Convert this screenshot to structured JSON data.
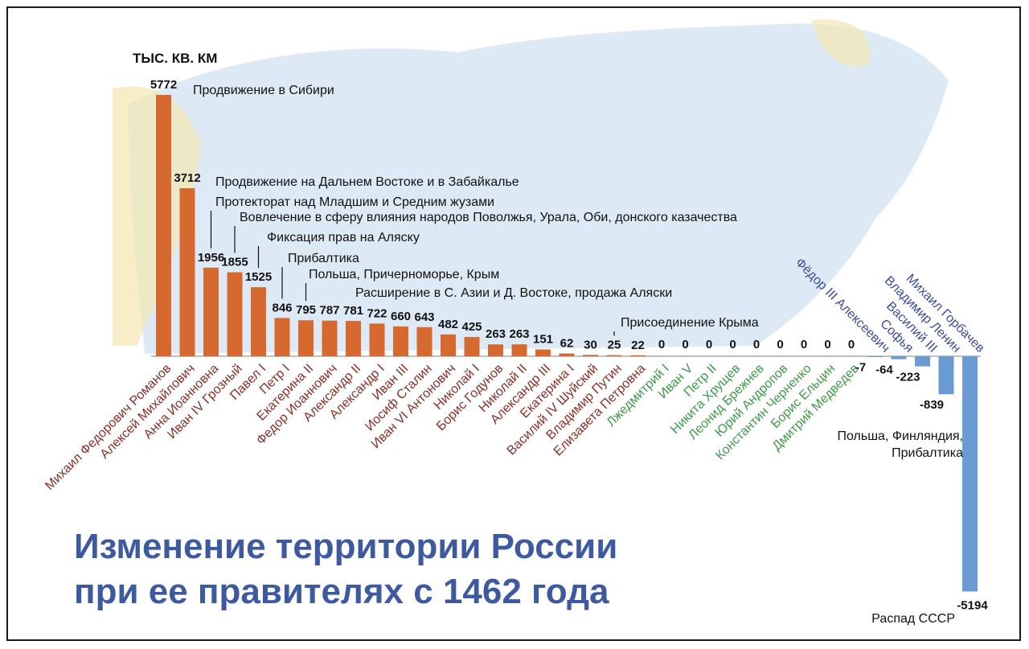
{
  "chart_data": {
    "type": "bar",
    "title_lines": [
      "Изменение территории России",
      "при ее правителях с 1462 года"
    ],
    "unit_label": "ТЫС. КВ. КМ",
    "categories": [
      "Михаил Федорович Романов",
      "Алексей Михайлович",
      "Анна Иоанновна",
      "Иван IV Грозный",
      "Павел I",
      "Петр I",
      "Екатерина II",
      "Федор Иоаннович",
      "Александр II",
      "Александр I",
      "Иван III",
      "Иосиф Сталин",
      "Иван VI Антонович",
      "Николай I",
      "Борис Годунов",
      "Николай II",
      "Александр III",
      "Екатерина I",
      "Василий IV Шуйский",
      "Владимир Путин",
      "Елизавета Петровна",
      "Лжедмитрий I",
      "Иван V",
      "Петр II",
      "Никита Хрущев",
      "Леонид Брежнев",
      "Юрий Андропов",
      "Константин Черненко",
      "Борис Ельцин",
      "Дмитрий Медведев",
      "Фёдор III Алексеевич",
      "Софья",
      "Василий III",
      "Владимир Ленин",
      "Михаил Горбачев"
    ],
    "values": [
      5772,
      3712,
      1956,
      1855,
      1525,
      846,
      795,
      787,
      781,
      722,
      660,
      643,
      482,
      425,
      263,
      263,
      151,
      62,
      30,
      25,
      22,
      0,
      0,
      0,
      0,
      0,
      0,
      0,
      0,
      0,
      -7,
      -64,
      -223,
      -839,
      -5194
    ],
    "value_labels": [
      "5772",
      "3712",
      "1956",
      "1855",
      "1525",
      "846",
      "795",
      "787",
      "781",
      "722",
      "660",
      "643",
      "482",
      "425",
      "263",
      "263",
      "151",
      "62",
      "30",
      "25",
      "22",
      "0",
      "0",
      "0",
      "0",
      "0",
      "0",
      "0",
      "0",
      "0",
      "-7",
      "-64",
      "-223",
      "-839",
      "-5194"
    ],
    "category_groups": [
      "gain",
      "gain",
      "gain",
      "gain",
      "gain",
      "gain",
      "gain",
      "gain",
      "gain",
      "gain",
      "gain",
      "gain",
      "gain",
      "gain",
      "gain",
      "gain",
      "gain",
      "gain",
      "gain",
      "gain",
      "gain",
      "zero",
      "zero",
      "zero",
      "zero",
      "zero",
      "zero",
      "zero",
      "zero",
      "zero",
      "loss",
      "loss",
      "loss",
      "loss",
      "loss"
    ],
    "annotations": [
      {
        "index": 0,
        "text": "Продвижение в Сибири"
      },
      {
        "index": 1,
        "text": "Продвижение на Дальнем Востоке и в Забайкалье"
      },
      {
        "index": 2,
        "text": "Протекторат над Младшим и Средним жузами"
      },
      {
        "index": 3,
        "text": "Вовлечение в сферу влияния народов Поволжья, Урала, Оби, донского казачества"
      },
      {
        "index": 4,
        "text": "Фиксация прав на Аляску"
      },
      {
        "index": 5,
        "text": "Прибалтика"
      },
      {
        "index": 6,
        "text": "Польша, Причерноморье, Крым"
      },
      {
        "index": 8,
        "text": "Расширение в С. Азии и Д. Востоке, продажа Аляски"
      },
      {
        "index": 19,
        "text": "Присоединение Крыма"
      },
      {
        "index": 33,
        "text_lines": [
          "Польша, Финляндия,",
          "Прибалтика"
        ]
      },
      {
        "index": 34,
        "text": "Распад СССР"
      }
    ],
    "colors": {
      "gain_bar": "#d5692f",
      "loss_bar": "#6a9bd3",
      "gain_label": "#8b2e24",
      "zero_label": "#3e9a47",
      "loss_label": "#3d4c9c",
      "title": "#3d5aa0",
      "background_map": "#dde9f4",
      "background_land": "#f3e7b2"
    },
    "background": "map of Russia"
  }
}
